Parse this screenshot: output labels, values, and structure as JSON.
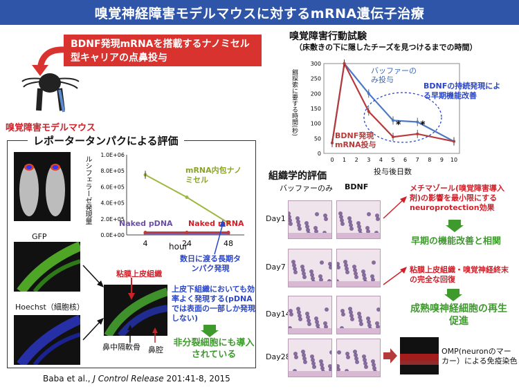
{
  "title": "嗅覚神経障害モデルマウスに対するmRNA遺伝子治療",
  "delivery_box": "BDNF発現mRNAを搭載するナノミセル型キャリアの点鼻投与",
  "model_label": "嗅覚障害モデルマウス",
  "reporter": {
    "title": "レポータータンパクによる評価",
    "gfp_label": "GFP",
    "hoechst_label": "Hoechst（細胞核）",
    "mucosa_label": "粘膜上皮組織",
    "septum_label": "鼻中隔軟骨",
    "cavity_label": "鼻腔",
    "expression_text": "上皮下組織においても効率よく発現する(pDNAでは表面の一部しか発現しない)",
    "nondividing_text": "非分裂細胞にも導入されている",
    "long_term_text": "数日に渡る長期タンパク発現"
  },
  "behavior": {
    "title": "嗅覚障害行動試験",
    "subtitle": "（床敷きの下に隠したチーズを見つけるまでの時間）",
    "note": "BDNFの持続発現による早期機能改善"
  },
  "histology": {
    "title": "組織学的評価",
    "col1": "バッファーのみ",
    "col2": "BDNF",
    "rows": [
      "Day1",
      "Day7",
      "Day14",
      "Day28"
    ],
    "omp_text": "OMP(neuronのマーカー）による免疫染色"
  },
  "right_texts": {
    "t1": "メチマゾール(嗅覚障害導入剤)の影響を最小限にするneuroprotection効果",
    "t2": "早期の機能改善と相関",
    "t3": "粘膜上皮組織・嗅覚神経終末の完全な回復",
    "t4": "成熟嗅神経細胞の再生促進"
  },
  "citation": {
    "authors": "Baba et al., ",
    "journal": "J Control Release",
    "rest": " 201:41-8, 2015"
  },
  "colors": {
    "banner": "#2f55a8",
    "red": "#d8332f",
    "blue": "#4a78c4",
    "darkred": "#b73a3a",
    "olive": "#9db840",
    "purple": "#7b5fb0",
    "green": "#3f9a2e"
  },
  "chart_data": [
    {
      "type": "line",
      "title": "",
      "xlabel": "hour",
      "ylabel": "ルシフェラーゼ発現量",
      "x": [
        4,
        24,
        48
      ],
      "ylim": [
        0,
        1000000
      ],
      "yticks": [
        "1.0E+06",
        "8.0E+05",
        "6.0E+05",
        "4.0E+05",
        "2.0E+05",
        "0.0E+00"
      ],
      "series": [
        {
          "name": "mRNA内包ナノミセル",
          "values": [
            750000,
            470000,
            150000
          ]
        },
        {
          "name": "Naked pDNA",
          "values": [
            20000,
            20000,
            20000
          ]
        },
        {
          "name": "Naked mRNA",
          "values": [
            30000,
            30000,
            30000
          ]
        }
      ]
    },
    {
      "type": "line",
      "title": "",
      "xlabel": "投与後日数",
      "ylabel": "餌探索に要する時間(秒)",
      "x": [
        0,
        1,
        3,
        5,
        7,
        10
      ],
      "ylim": [
        0,
        300
      ],
      "yticks": [
        "0",
        "50",
        "100",
        "150",
        "200",
        "250",
        "300"
      ],
      "xticks": [
        "0",
        "1",
        "2",
        "3",
        "4",
        "5",
        "6",
        "7",
        "8",
        "9",
        "10"
      ],
      "series": [
        {
          "name": "バッファーのみ投与",
          "values": [
            35,
            300,
            200,
            110,
            105,
            40
          ]
        },
        {
          "name": "BDNF発現mRNA投与",
          "values": [
            35,
            300,
            140,
            55,
            65,
            40
          ]
        }
      ],
      "annotations": [
        "*",
        "*"
      ]
    }
  ]
}
